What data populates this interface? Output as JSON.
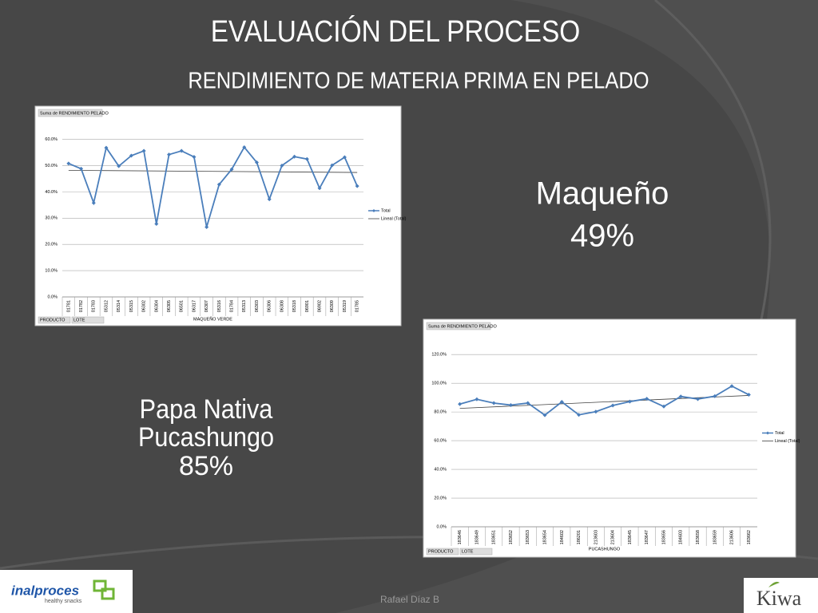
{
  "header": {
    "title": "EVALUACIÓN DEL PROCESO",
    "subtitle": "RENDIMIENTO DE MATERIA PRIMA EN PELADO"
  },
  "callouts": {
    "maqueno": {
      "name": "Maqueño",
      "value": "49%"
    },
    "papa": {
      "line1": "Papa Nativa",
      "line2": "Pucashungo",
      "value": "85%"
    }
  },
  "footer": {
    "author": "Rafael Díaz B",
    "logo_left": "inalproces",
    "logo_left_tagline": "healthy snacks",
    "logo_right": "Kiwa"
  },
  "chart_data": [
    {
      "type": "line",
      "title": "Suma de RENDIMIENTO PELADO",
      "x_label": "MAQUEÑO VERDE",
      "filters": [
        "PRODUCTO",
        "LOTE"
      ],
      "categories": [
        "01781",
        "01782",
        "01783",
        "05312",
        "05314",
        "05315",
        "06302",
        "06304",
        "06305",
        "06501",
        "06317",
        "06307",
        "05316",
        "01784",
        "05313",
        "06303",
        "06306",
        "06308",
        "05318",
        "06901",
        "06902",
        "06309",
        "05319",
        "01785"
      ],
      "series": [
        {
          "name": "Total",
          "color": "#4a7ebb",
          "values": [
            50.8,
            48.8,
            35.8,
            56.8,
            49.8,
            53.8,
            55.6,
            27.8,
            54.2,
            55.6,
            53.3,
            26.6,
            42.8,
            48.6,
            57.0,
            51.2,
            37.2,
            50.0,
            53.4,
            52.5,
            41.4,
            50.1,
            53.2,
            42.2
          ]
        }
      ],
      "trendline": {
        "name": "Lineal (Total)",
        "color": "#404040",
        "values": [
          48.2,
          47.4
        ]
      },
      "ylim": [
        0,
        62
      ],
      "yticks": [
        {
          "value": 0,
          "label": "0.0%"
        },
        {
          "value": 10,
          "label": "10.0%"
        },
        {
          "value": 20,
          "label": "20.0%"
        },
        {
          "value": 30,
          "label": "30.0%"
        },
        {
          "value": 40,
          "label": "40.0%"
        },
        {
          "value": 50,
          "label": "50.0%"
        },
        {
          "value": 60,
          "label": "60.0%"
        }
      ],
      "grid": true,
      "legend": "right"
    },
    {
      "type": "line",
      "title": "Suma de RENDIMIENTO PELADO",
      "x_label": "PUCASHUNGO",
      "filters": [
        "PRODUCTO",
        "LOTE"
      ],
      "categories": [
        "183646",
        "183649",
        "183651",
        "183652",
        "183653",
        "183654",
        "184602",
        "186201",
        "213603",
        "213604",
        "183645",
        "183647",
        "183656",
        "184603",
        "183658",
        "183659",
        "213606",
        "183662"
      ],
      "series": [
        {
          "name": "Total",
          "color": "#4a7ebb",
          "values": [
            85.5,
            88.8,
            86.2,
            84.8,
            86.2,
            77.8,
            87.0,
            78.0,
            80.2,
            84.5,
            87.2,
            89.2,
            83.8,
            90.8,
            89.0,
            91.0,
            98.0,
            92.0
          ]
        }
      ],
      "trendline": {
        "name": "Lineal (Total)",
        "color": "#404040",
        "values": [
          82.5,
          91.5
        ]
      },
      "ylim": [
        0,
        124
      ],
      "yticks": [
        {
          "value": 0,
          "label": "0.0%"
        },
        {
          "value": 20,
          "label": "20.0%"
        },
        {
          "value": 40,
          "label": "40.0%"
        },
        {
          "value": 60,
          "label": "60.0%"
        },
        {
          "value": 80,
          "label": "80.0%"
        },
        {
          "value": 100,
          "label": "100.0%"
        },
        {
          "value": 120,
          "label": "120.0%"
        }
      ],
      "grid": true,
      "legend": "right"
    }
  ]
}
